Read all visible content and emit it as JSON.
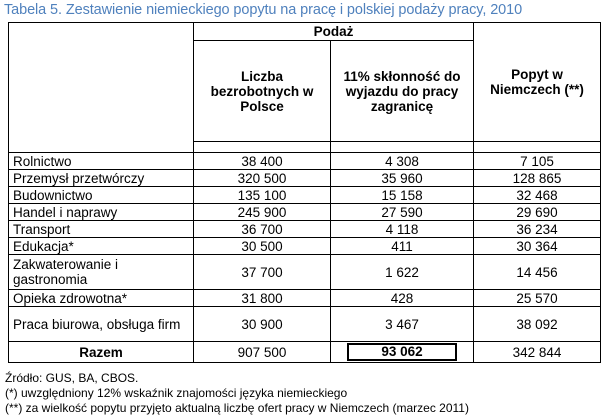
{
  "caption": "Tabela 5. Zestawienie niemieckiego popytu na pracę i polskiej podaży pracy, 2010",
  "table": {
    "group_header": "Podaż",
    "columns": [
      "Liczba bezrobotnych w Polsce",
      "11% skłonność do wyjazdu do pracy zagranicę",
      "Popyt w Niemczech (**)"
    ],
    "rows": [
      {
        "label": "Rolnictwo",
        "values": [
          "38 400",
          "4 308",
          "7 105"
        ]
      },
      {
        "label": "Przemysł przetwórczy",
        "values": [
          "320 500",
          "35 960",
          "128 865"
        ]
      },
      {
        "label": "Budownictwo",
        "values": [
          "135 100",
          "15 158",
          "32 468"
        ]
      },
      {
        "label": "Handel i naprawy",
        "values": [
          "245 900",
          "27 590",
          "29 690"
        ]
      },
      {
        "label": "Transport",
        "values": [
          "36 700",
          "4 118",
          "36 234"
        ]
      },
      {
        "label": "Edukacja*",
        "values": [
          "30 500",
          "411",
          "30 364"
        ]
      },
      {
        "label": "Zakwaterowanie i gastronomia",
        "values": [
          "37 700",
          "1 622",
          "14 456"
        ]
      },
      {
        "label": "Opieka zdrowotna*",
        "values": [
          "31 800",
          "428",
          "25 570"
        ]
      },
      {
        "label": "Praca biurowa, obsługa firm",
        "values": [
          "30 900",
          "3 467",
          "38 092"
        ]
      }
    ],
    "total": {
      "label": "Razem",
      "values": [
        "907 500",
        "93 062",
        "342 844"
      ]
    }
  },
  "footnotes": {
    "source": "Źródło: GUS, BA, CBOS.",
    "note1": "(*) uwzględniony 12% wskaźnik znajomości języka niemieckiego",
    "note2": "(**) za wielkość popytu przyjęto aktualną liczbę ofert pracy w Niemczech (marzec 2011)"
  },
  "colors": {
    "caption": "#4f81bd"
  }
}
